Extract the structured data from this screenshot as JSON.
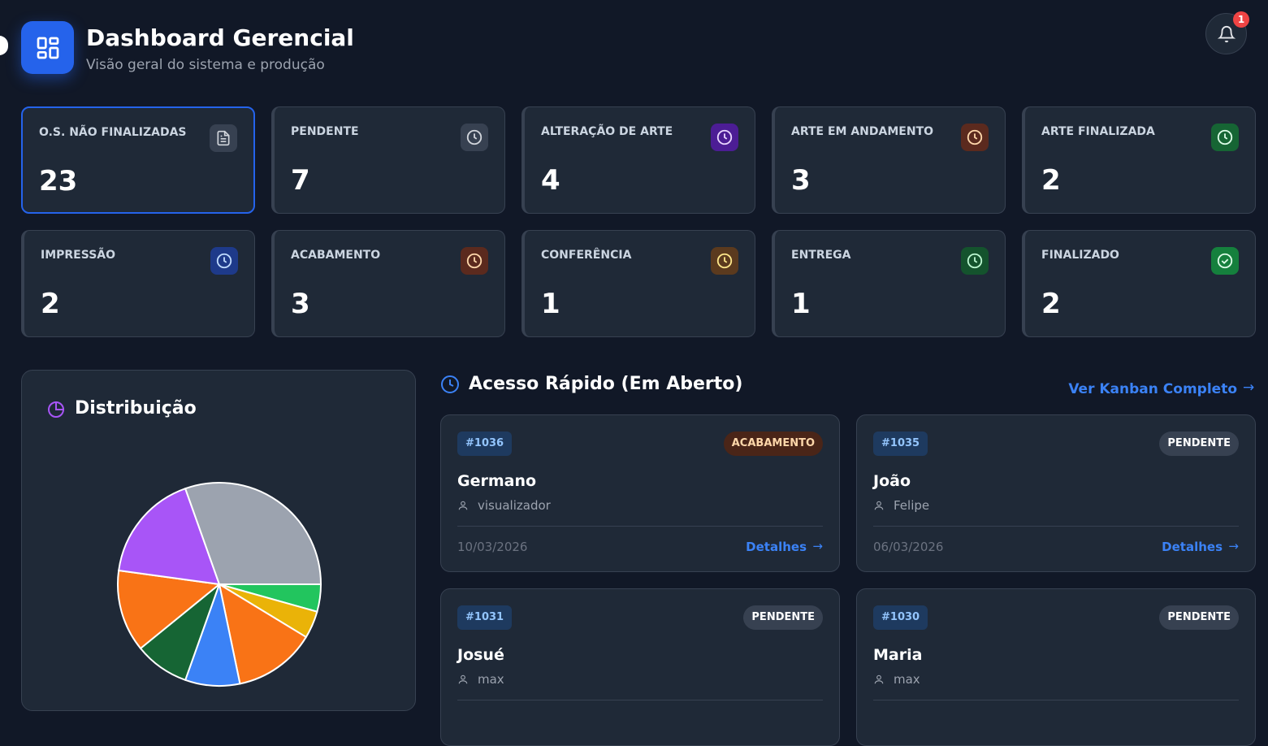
{
  "header": {
    "title": "Dashboard Gerencial",
    "subtitle": "Visão geral do sistema e produção",
    "notifications": "1"
  },
  "stats": [
    {
      "label": "O.S. NÃO FINALIZADAS",
      "value": "23"
    },
    {
      "label": "PENDENTE",
      "value": "7"
    },
    {
      "label": "ALTERAÇÃO DE ARTE",
      "value": "4"
    },
    {
      "label": "ARTE EM ANDAMENTO",
      "value": "3"
    },
    {
      "label": "ARTE FINALIZADA",
      "value": "2"
    },
    {
      "label": "IMPRESSÃO",
      "value": "2"
    },
    {
      "label": "ACABAMENTO",
      "value": "3"
    },
    {
      "label": "CONFERÊNCIA",
      "value": "1"
    },
    {
      "label": "ENTREGA",
      "value": "1"
    },
    {
      "label": "FINALIZADO",
      "value": "2"
    }
  ],
  "distribution": {
    "title": "Distribuição",
    "type": "pie",
    "values": [
      1,
      1,
      3,
      2,
      2,
      3,
      4,
      7
    ],
    "colors": [
      "#22c55e",
      "#eab308",
      "#f97316",
      "#3b82f6",
      "#166534",
      "#f97316",
      "#a855f7",
      "#9ca3af"
    ]
  },
  "quick_access": {
    "title": "Acesso Rápido (Em Aberto)",
    "link": "Ver Kanban Completo",
    "cards": [
      {
        "id": "#1036",
        "status": "ACABAMENTO",
        "name": "Germano",
        "user": "visualizador",
        "date": "10/03/2026",
        "action": "Detalhes"
      },
      {
        "id": "#1035",
        "status": "PENDENTE",
        "name": "João",
        "user": "Felipe",
        "date": "06/03/2026",
        "action": "Detalhes"
      },
      {
        "id": "#1031",
        "status": "PENDENTE",
        "name": "Josué",
        "user": "max"
      },
      {
        "id": "#1030",
        "status": "PENDENTE",
        "name": "Maria",
        "user": "max"
      }
    ]
  }
}
